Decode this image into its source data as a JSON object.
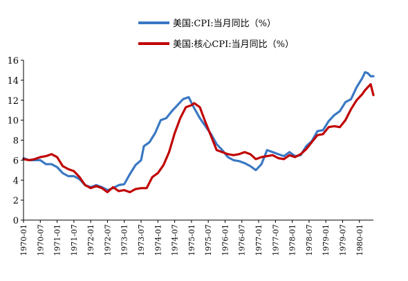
{
  "chart_data": {
    "type": "line",
    "title": "",
    "xlabel": "",
    "ylabel": "",
    "ylim": [
      0,
      16
    ],
    "yticks": [
      0,
      2,
      4,
      6,
      8,
      10,
      12,
      14,
      16
    ],
    "x_start": "1970-01",
    "x_end": "1980-06",
    "xtick_labels": [
      "1970-01",
      "1970-07",
      "1971-01",
      "1971-07",
      "1972-01",
      "1972-07",
      "1973-01",
      "1973-07",
      "1974-01",
      "1974-07",
      "1975-01",
      "1975-07",
      "1976-01",
      "1976-07",
      "1977-01",
      "1977-07",
      "1978-01",
      "1978-07",
      "1979-01",
      "1979-07",
      "1980-01"
    ],
    "grid": false,
    "legend_position": "top",
    "series": [
      {
        "name": "美国:CPI:当月同比（%）",
        "color": "#3A78C3",
        "points": [
          [
            "1970-01",
            6.2
          ],
          [
            "1970-03",
            6.0
          ],
          [
            "1970-05",
            6.0
          ],
          [
            "1970-07",
            6.0
          ],
          [
            "1970-09",
            5.6
          ],
          [
            "1970-11",
            5.6
          ],
          [
            "1971-01",
            5.3
          ],
          [
            "1971-03",
            4.7
          ],
          [
            "1971-05",
            4.4
          ],
          [
            "1971-07",
            4.4
          ],
          [
            "1971-09",
            4.1
          ],
          [
            "1971-11",
            3.5
          ],
          [
            "1972-01",
            3.3
          ],
          [
            "1972-03",
            3.5
          ],
          [
            "1972-05",
            3.3
          ],
          [
            "1972-07",
            3.0
          ],
          [
            "1972-09",
            3.2
          ],
          [
            "1972-11",
            3.5
          ],
          [
            "1973-01",
            3.6
          ],
          [
            "1973-03",
            4.6
          ],
          [
            "1973-05",
            5.5
          ],
          [
            "1973-07",
            6.0
          ],
          [
            "1973-08",
            7.4
          ],
          [
            "1973-10",
            7.8
          ],
          [
            "1973-12",
            8.7
          ],
          [
            "1974-02",
            10.0
          ],
          [
            "1974-04",
            10.2
          ],
          [
            "1974-06",
            10.9
          ],
          [
            "1974-08",
            11.5
          ],
          [
            "1974-10",
            12.1
          ],
          [
            "1974-12",
            12.3
          ],
          [
            "1975-02",
            11.2
          ],
          [
            "1975-04",
            10.2
          ],
          [
            "1975-06",
            9.4
          ],
          [
            "1975-08",
            8.6
          ],
          [
            "1975-10",
            7.6
          ],
          [
            "1975-12",
            7.0
          ],
          [
            "1976-02",
            6.3
          ],
          [
            "1976-04",
            6.0
          ],
          [
            "1976-06",
            5.9
          ],
          [
            "1976-08",
            5.7
          ],
          [
            "1976-10",
            5.4
          ],
          [
            "1976-12",
            5.0
          ],
          [
            "1977-02",
            5.6
          ],
          [
            "1977-04",
            7.0
          ],
          [
            "1977-06",
            6.8
          ],
          [
            "1977-08",
            6.6
          ],
          [
            "1977-10",
            6.4
          ],
          [
            "1977-12",
            6.8
          ],
          [
            "1978-02",
            6.4
          ],
          [
            "1978-04",
            6.5
          ],
          [
            "1978-06",
            7.4
          ],
          [
            "1978-08",
            7.9
          ],
          [
            "1978-10",
            8.9
          ],
          [
            "1978-12",
            9.0
          ],
          [
            "1979-02",
            9.9
          ],
          [
            "1979-04",
            10.5
          ],
          [
            "1979-06",
            10.9
          ],
          [
            "1979-08",
            11.8
          ],
          [
            "1979-10",
            12.1
          ],
          [
            "1979-12",
            13.3
          ],
          [
            "1980-02",
            14.2
          ],
          [
            "1980-03",
            14.8
          ],
          [
            "1980-04",
            14.7
          ],
          [
            "1980-05",
            14.4
          ],
          [
            "1980-06",
            14.4
          ]
        ]
      },
      {
        "name": "美国:核心CPI:当月同比（%）",
        "color": "#C00000",
        "points": [
          [
            "1970-01",
            6.1
          ],
          [
            "1970-03",
            6.0
          ],
          [
            "1970-05",
            6.1
          ],
          [
            "1970-07",
            6.3
          ],
          [
            "1970-09",
            6.4
          ],
          [
            "1970-11",
            6.6
          ],
          [
            "1971-01",
            6.3
          ],
          [
            "1971-03",
            5.4
          ],
          [
            "1971-05",
            5.1
          ],
          [
            "1971-07",
            4.9
          ],
          [
            "1971-09",
            4.3
          ],
          [
            "1971-11",
            3.5
          ],
          [
            "1972-01",
            3.2
          ],
          [
            "1972-03",
            3.4
          ],
          [
            "1972-05",
            3.2
          ],
          [
            "1972-07",
            2.8
          ],
          [
            "1972-09",
            3.3
          ],
          [
            "1972-11",
            2.9
          ],
          [
            "1973-01",
            3.0
          ],
          [
            "1973-03",
            2.8
          ],
          [
            "1973-05",
            3.1
          ],
          [
            "1973-07",
            3.2
          ],
          [
            "1973-09",
            3.2
          ],
          [
            "1973-11",
            4.3
          ],
          [
            "1974-01",
            4.7
          ],
          [
            "1974-03",
            5.5
          ],
          [
            "1974-05",
            6.8
          ],
          [
            "1974-07",
            8.7
          ],
          [
            "1974-09",
            10.2
          ],
          [
            "1974-11",
            11.3
          ],
          [
            "1975-01",
            11.5
          ],
          [
            "1975-02",
            11.7
          ],
          [
            "1975-04",
            11.3
          ],
          [
            "1975-06",
            9.8
          ],
          [
            "1975-08",
            8.4
          ],
          [
            "1975-10",
            7.0
          ],
          [
            "1975-12",
            6.8
          ],
          [
            "1976-02",
            6.6
          ],
          [
            "1976-04",
            6.5
          ],
          [
            "1976-06",
            6.6
          ],
          [
            "1976-08",
            6.8
          ],
          [
            "1976-10",
            6.6
          ],
          [
            "1976-12",
            6.1
          ],
          [
            "1977-02",
            6.3
          ],
          [
            "1977-04",
            6.4
          ],
          [
            "1977-06",
            6.5
          ],
          [
            "1977-08",
            6.2
          ],
          [
            "1977-10",
            6.1
          ],
          [
            "1977-12",
            6.5
          ],
          [
            "1978-02",
            6.3
          ],
          [
            "1978-04",
            6.6
          ],
          [
            "1978-06",
            7.1
          ],
          [
            "1978-08",
            7.8
          ],
          [
            "1978-10",
            8.5
          ],
          [
            "1978-12",
            8.6
          ],
          [
            "1979-02",
            9.3
          ],
          [
            "1979-04",
            9.4
          ],
          [
            "1979-06",
            9.3
          ],
          [
            "1979-08",
            10.0
          ],
          [
            "1979-10",
            11.1
          ],
          [
            "1979-12",
            12.0
          ],
          [
            "1980-02",
            12.6
          ],
          [
            "1980-03",
            13.0
          ],
          [
            "1980-04",
            13.3
          ],
          [
            "1980-05",
            13.6
          ],
          [
            "1980-06",
            12.5
          ]
        ]
      }
    ]
  }
}
